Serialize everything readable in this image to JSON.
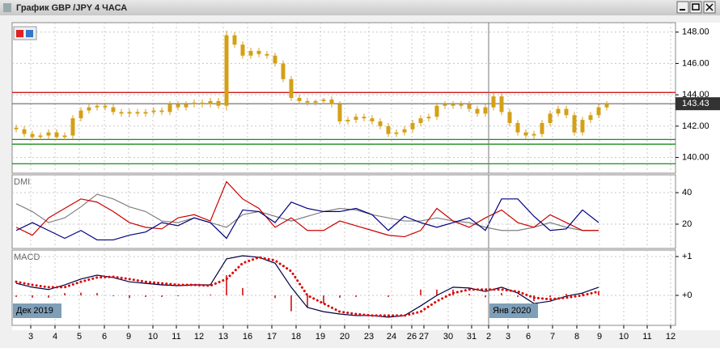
{
  "window": {
    "title": "График GBP /JPY  4 ЧАСА"
  },
  "chart_data": [
    {
      "type": "candlestick",
      "color": "#d4a017",
      "xlim": [
        -0.5,
        81.5
      ],
      "ylim": [
        139.1,
        148.5
      ],
      "yticks": [
        {
          "value": 140,
          "label": "140.00"
        },
        {
          "value": 142,
          "label": "142.00"
        },
        {
          "value": 144,
          "label": "144.00"
        },
        {
          "value": 146,
          "label": "146.00"
        },
        {
          "value": 148,
          "label": "148.00"
        }
      ],
      "xticks": [
        {
          "value": 1.8,
          "label": "3"
        },
        {
          "value": 4.8,
          "label": "4"
        },
        {
          "value": 7.8,
          "label": "5"
        },
        {
          "value": 10.9,
          "label": "6"
        },
        {
          "value": 13.9,
          "label": "9"
        },
        {
          "value": 16.9,
          "label": "10"
        },
        {
          "value": 19.8,
          "label": "11"
        },
        {
          "value": 22.6,
          "label": "12"
        },
        {
          "value": 25.6,
          "label": "13"
        },
        {
          "value": 28.6,
          "label": "16"
        },
        {
          "value": 31.6,
          "label": "17"
        },
        {
          "value": 34.6,
          "label": "18"
        },
        {
          "value": 37.6,
          "label": "19"
        },
        {
          "value": 40.6,
          "label": "20"
        },
        {
          "value": 43.6,
          "label": "23"
        },
        {
          "value": 46.4,
          "label": "24"
        },
        {
          "value": 48.9,
          "label": "26"
        },
        {
          "value": 50.4,
          "label": "27"
        },
        {
          "value": 53.4,
          "label": "30"
        },
        {
          "value": 56.3,
          "label": "31"
        },
        {
          "value": 58.4,
          "label": "2"
        },
        {
          "value": 60.8,
          "label": "3"
        },
        {
          "value": 63.3,
          "label": "6"
        },
        {
          "value": 66.3,
          "label": "7"
        },
        {
          "value": 69.3,
          "label": "8"
        },
        {
          "value": 72.1,
          "label": "9"
        },
        {
          "value": 75.1,
          "label": "10"
        },
        {
          "value": 78,
          "label": "11"
        },
        {
          "value": 80.9,
          "label": "12"
        }
      ],
      "hlines": [
        {
          "value": 144.15,
          "color": "#cc0000"
        },
        {
          "value": 141.15,
          "color": "#008000"
        },
        {
          "value": 140.85,
          "color": "#008000"
        },
        {
          "value": 139.6,
          "color": "#008000"
        }
      ],
      "current": {
        "value": 143.43,
        "label": "143.43",
        "color": "#555555"
      },
      "open": [
        141.9,
        141.8,
        141.5,
        141.3,
        141.4,
        141.6,
        141.3,
        141.4,
        142.5,
        143.0,
        143.2,
        143.3,
        143.2,
        142.9,
        142.8,
        142.9,
        142.8,
        142.9,
        143.0,
        142.9,
        143.4,
        143.2,
        143.4,
        143.5,
        143.4,
        143.6,
        143.3,
        147.8,
        147.2,
        146.5,
        146.8,
        146.6,
        146.5,
        146.0,
        145.0,
        143.8,
        143.6,
        143.5,
        143.6,
        143.7,
        143.4,
        142.3,
        142.4,
        142.6,
        142.5,
        142.3,
        142.0,
        141.5,
        141.6,
        141.8,
        142.2,
        142.5,
        142.6,
        143.3,
        143.4,
        143.3,
        143.4,
        143.1,
        142.8,
        143.2,
        143.9,
        142.9,
        142.2,
        141.6,
        141.4,
        141.5,
        142.2,
        142.8,
        143.1,
        142.7,
        141.6,
        142.4,
        142.7,
        143.2
      ],
      "high": [
        142.1,
        142.0,
        141.7,
        141.6,
        141.8,
        141.8,
        141.6,
        142.7,
        143.2,
        143.4,
        143.5,
        143.5,
        143.4,
        143.1,
        143.1,
        143.1,
        143.1,
        143.2,
        143.2,
        143.6,
        143.6,
        143.6,
        143.7,
        143.7,
        143.8,
        143.8,
        148.1,
        148.0,
        147.4,
        147.0,
        147.0,
        146.8,
        146.7,
        146.2,
        145.2,
        144.0,
        143.8,
        143.7,
        143.8,
        143.9,
        143.6,
        142.6,
        142.8,
        142.8,
        142.7,
        142.5,
        142.2,
        141.8,
        142.0,
        142.4,
        142.7,
        142.8,
        143.5,
        143.6,
        143.6,
        143.6,
        143.6,
        143.3,
        143.4,
        144.1,
        144.1,
        143.1,
        142.4,
        141.8,
        141.7,
        142.4,
        143.0,
        143.3,
        143.3,
        142.9,
        142.6,
        142.9,
        143.4,
        143.6
      ],
      "low": [
        141.6,
        141.3,
        141.1,
        141.1,
        141.2,
        141.1,
        141.1,
        141.2,
        142.3,
        142.8,
        143.0,
        143.0,
        142.7,
        142.6,
        142.6,
        142.6,
        142.6,
        142.7,
        142.7,
        142.7,
        143.0,
        143.0,
        143.2,
        143.2,
        143.2,
        143.1,
        143.0,
        147.0,
        146.3,
        146.3,
        146.4,
        146.3,
        145.8,
        144.8,
        143.6,
        143.4,
        143.3,
        143.3,
        143.4,
        143.2,
        142.1,
        142.1,
        142.2,
        142.3,
        142.1,
        141.8,
        141.3,
        141.3,
        141.4,
        141.6,
        142.0,
        142.3,
        142.4,
        143.1,
        143.1,
        143.1,
        142.9,
        142.6,
        142.6,
        143.0,
        142.7,
        142.0,
        141.4,
        141.2,
        141.2,
        141.3,
        142.0,
        142.6,
        142.5,
        141.4,
        141.4,
        142.2,
        142.5,
        143.0
      ],
      "close": [
        141.8,
        141.5,
        141.3,
        141.4,
        141.6,
        141.3,
        141.4,
        142.5,
        143.0,
        143.2,
        143.3,
        143.2,
        142.9,
        142.8,
        142.9,
        142.8,
        142.9,
        143.0,
        142.9,
        143.4,
        143.2,
        143.4,
        143.5,
        143.4,
        143.6,
        143.3,
        147.8,
        147.2,
        146.5,
        146.8,
        146.6,
        146.5,
        146.0,
        145.0,
        143.8,
        143.6,
        143.5,
        143.6,
        143.7,
        143.4,
        142.3,
        142.4,
        142.6,
        142.5,
        142.3,
        142.0,
        141.5,
        141.6,
        141.8,
        142.2,
        142.5,
        142.6,
        143.3,
        143.4,
        143.3,
        143.4,
        143.1,
        142.8,
        143.2,
        143.9,
        142.9,
        142.2,
        141.6,
        141.4,
        141.5,
        142.2,
        142.8,
        143.1,
        142.7,
        141.6,
        142.4,
        142.7,
        143.2,
        143.43
      ]
    },
    {
      "type": "line",
      "title": "DMI",
      "xlim": [
        -0.5,
        81.5
      ],
      "ylim": [
        5.6,
        50.3
      ],
      "yticks": [
        20,
        40
      ],
      "x": [
        0,
        2,
        4,
        6,
        8,
        10,
        12,
        14,
        16,
        18,
        20,
        22,
        24,
        26,
        28,
        30,
        32,
        34,
        36,
        38,
        40,
        42,
        44,
        46,
        48,
        50,
        52,
        54,
        56,
        58,
        60,
        62,
        64,
        66,
        68,
        70,
        72
      ],
      "series": [
        {
          "color": "#808080",
          "values": [
            33,
            28,
            21,
            24,
            31,
            39,
            36,
            31,
            28,
            22,
            21,
            24,
            21,
            18,
            26,
            28,
            25,
            22,
            25,
            28,
            30,
            29,
            26,
            24,
            22,
            22,
            24,
            22,
            21,
            18,
            16,
            16,
            18,
            21,
            18,
            16,
            16
          ]
        },
        {
          "color": "#cc0000",
          "values": [
            18,
            13,
            24,
            30,
            36,
            34,
            28,
            21,
            18,
            17,
            24,
            26,
            22,
            47,
            36,
            30,
            18,
            24,
            16,
            16,
            22,
            19,
            16,
            13,
            12,
            16,
            30,
            22,
            18,
            24,
            29,
            21,
            18,
            26,
            21,
            16,
            16
          ]
        },
        {
          "color": "#000080",
          "values": [
            16,
            21,
            16,
            11,
            16,
            10,
            10,
            13,
            15,
            21,
            19,
            24,
            21,
            11,
            29,
            28,
            21,
            34,
            30,
            28,
            28,
            30,
            26,
            16,
            25,
            21,
            18,
            21,
            24,
            16,
            36,
            36,
            25,
            16,
            17,
            29,
            21
          ]
        }
      ]
    },
    {
      "type": "macd",
      "title": "MACD",
      "xlim": [
        -0.5,
        81.5
      ],
      "ylim": [
        -0.73,
        1.125
      ],
      "yticks": [
        {
          "value": 0,
          "label": "+0"
        },
        {
          "value": 1,
          "label": "+1"
        }
      ],
      "x": [
        0,
        2,
        4,
        6,
        8,
        10,
        12,
        14,
        16,
        18,
        20,
        22,
        24,
        26,
        28,
        30,
        32,
        34,
        36,
        38,
        40,
        42,
        44,
        46,
        48,
        50,
        52,
        54,
        56,
        58,
        60,
        62,
        64,
        66,
        68,
        70,
        72
      ],
      "histogram": {
        "color": "#cc0000",
        "values": [
          -0.04,
          -0.06,
          -0.06,
          0.06,
          0.07,
          0.06,
          -0.02,
          -0.07,
          -0.04,
          -0.04,
          -0.02,
          0,
          0.02,
          0.52,
          0.19,
          0,
          -0.07,
          -0.41,
          -0.31,
          -0.21,
          -0.06,
          -0.04,
          0,
          -0.04,
          0,
          0.15,
          0.15,
          0.15,
          0.04,
          -0.05,
          0.06,
          -0.04,
          -0.15,
          -0.05,
          0.04,
          0.06,
          0.11
        ]
      },
      "series": [
        {
          "color": "#000040",
          "values": [
            0.31,
            0.21,
            0.15,
            0.27,
            0.42,
            0.52,
            0.46,
            0.35,
            0.31,
            0.27,
            0.25,
            0.27,
            0.27,
            0.94,
            1.02,
            0.98,
            0.83,
            0.21,
            -0.31,
            -0.42,
            -0.48,
            -0.52,
            -0.52,
            -0.56,
            -0.52,
            -0.27,
            0,
            0.21,
            0.19,
            0.1,
            0.21,
            0.06,
            -0.21,
            -0.15,
            -0.02,
            0.06,
            0.21
          ]
        },
        {
          "color": "#dd0000",
          "dotted": true,
          "values": [
            0.35,
            0.27,
            0.21,
            0.21,
            0.35,
            0.46,
            0.48,
            0.42,
            0.35,
            0.31,
            0.27,
            0.27,
            0.25,
            0.42,
            0.83,
            0.98,
            0.9,
            0.62,
            0,
            -0.21,
            -0.42,
            -0.48,
            -0.52,
            -0.52,
            -0.52,
            -0.42,
            -0.15,
            0.06,
            0.15,
            0.15,
            0.15,
            0.1,
            -0.06,
            -0.1,
            -0.06,
            0,
            0.1
          ]
        }
      ],
      "separator": 58.4,
      "period_labels": [
        {
          "label": "Дек 2019"
        },
        {
          "value": 58.4,
          "label": "Янв 2020"
        }
      ]
    }
  ]
}
